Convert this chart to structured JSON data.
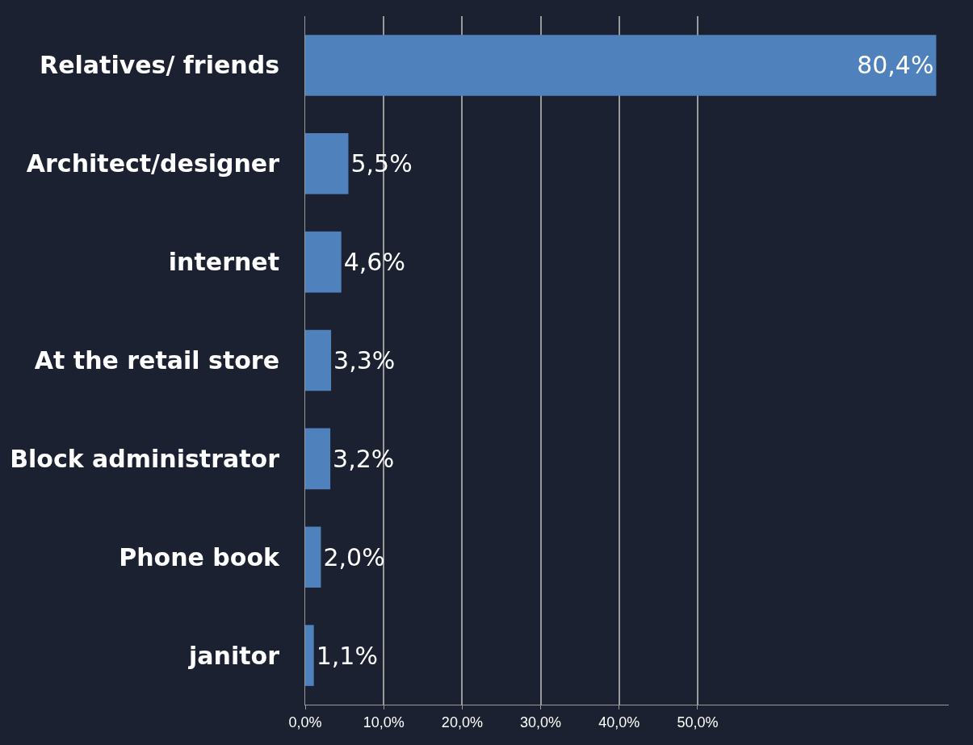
{
  "chart_data": {
    "type": "bar",
    "orientation": "horizontal",
    "categories": [
      "Relatives/ friends",
      "Architect/designer",
      "internet",
      "At the retail store",
      "Block administrator",
      "Phone book",
      "janitor"
    ],
    "values": [
      80.4,
      5.5,
      4.6,
      3.3,
      3.2,
      2.0,
      1.1
    ],
    "value_labels": [
      "80,4%",
      "5,5%",
      "4,6%",
      "3,3%",
      "3,2%",
      "2,0%",
      "1,1%"
    ],
    "color": "#4f81bd",
    "xlim": [
      0,
      82
    ],
    "xticks": [
      {
        "value": 0,
        "label": "0,0%"
      },
      {
        "value": 10,
        "label": "10,0%"
      },
      {
        "value": 20,
        "label": "20,0%"
      },
      {
        "value": 30,
        "label": "30,0%"
      },
      {
        "value": 40,
        "label": "40,0%"
      },
      {
        "value": 50,
        "label": "50,0%"
      }
    ],
    "grid": "x"
  }
}
